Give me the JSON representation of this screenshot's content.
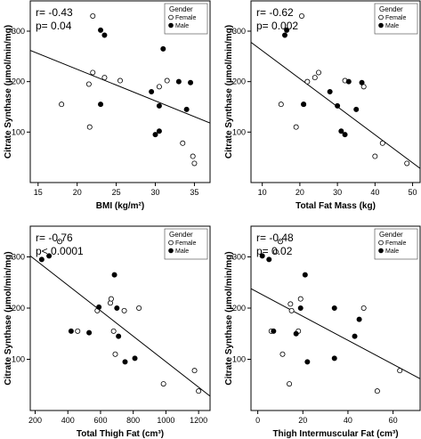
{
  "chart_data": [
    {
      "type": "scatter",
      "xlabel": "BMI (kg/m²)",
      "ylabel": "Citrate Synthase (µmol/min/mg)",
      "xlim": [
        14,
        37
      ],
      "ylim": [
        0,
        360
      ],
      "xticks": [
        "15",
        "20",
        "25",
        "30",
        "35"
      ],
      "yticks": [
        "100",
        "200",
        "300"
      ],
      "annotations": [
        "r= -0.43",
        "p= 0.04"
      ],
      "legend": {
        "title": "Gender",
        "entries": [
          "Female",
          "Male"
        ],
        "position": "top-right"
      },
      "trendline": [
        [
          14,
          262
        ],
        [
          37,
          118
        ]
      ],
      "series": [
        {
          "name": "Female",
          "marker": "open-circle",
          "points": [
            [
              18,
              155
            ],
            [
              21.5,
              195
            ],
            [
              21.6,
              110
            ],
            [
              22,
              330
            ],
            [
              22,
              218
            ],
            [
              23.5,
              208
            ],
            [
              25.5,
              202
            ],
            [
              30.5,
              190
            ],
            [
              31.5,
              202
            ],
            [
              33.5,
              78
            ],
            [
              34.8,
              52
            ],
            [
              35,
              38
            ]
          ]
        },
        {
          "name": "Male",
          "marker": "filled-circle",
          "points": [
            [
              23,
              155
            ],
            [
              23,
              302
            ],
            [
              23.5,
              292
            ],
            [
              29.5,
              180
            ],
            [
              30,
              95
            ],
            [
              30.5,
              102
            ],
            [
              30.5,
              152
            ],
            [
              31,
              265
            ],
            [
              33,
              200
            ],
            [
              34,
              145
            ],
            [
              34.5,
              198
            ]
          ]
        }
      ]
    },
    {
      "type": "scatter",
      "xlabel": "Total Fat Mass (kg)",
      "ylabel": "Citrate Synthase (µmol/min/mg)",
      "xlim": [
        7,
        52
      ],
      "ylim": [
        0,
        360
      ],
      "xticks": [
        "10",
        "20",
        "30",
        "40",
        "50"
      ],
      "yticks": [
        "100",
        "200",
        "300"
      ],
      "annotations": [
        "r= -0.62",
        "p= 0.002"
      ],
      "legend": {
        "title": "Gender",
        "entries": [
          "Female",
          "Male"
        ],
        "position": "top-right"
      },
      "trendline": [
        [
          7,
          278
        ],
        [
          52,
          28
        ]
      ],
      "series": [
        {
          "name": "Female",
          "marker": "open-circle",
          "points": [
            [
              15,
              155
            ],
            [
              19,
              110
            ],
            [
              20.5,
              330
            ],
            [
              21,
              155
            ],
            [
              22,
              200
            ],
            [
              24,
              208
            ],
            [
              25,
              218
            ],
            [
              32,
              202
            ],
            [
              37,
              190
            ],
            [
              40,
              52
            ],
            [
              42,
              78
            ],
            [
              48.5,
              38
            ]
          ]
        },
        {
          "name": "Male",
          "marker": "filled-circle",
          "points": [
            [
              16,
              292
            ],
            [
              16.5,
              302
            ],
            [
              21,
              155
            ],
            [
              28,
              180
            ],
            [
              30,
              152
            ],
            [
              31,
              102
            ],
            [
              32,
              95
            ],
            [
              33,
              200
            ],
            [
              35,
              145
            ],
            [
              36.5,
              198
            ]
          ]
        }
      ]
    },
    {
      "type": "scatter",
      "xlabel": "Total Thigh Fat (cm³)",
      "ylabel": "Citrate Synthase (µmol/min/mg)",
      "xlim": [
        170,
        1270
      ],
      "ylim": [
        0,
        360
      ],
      "xticks": [
        "200",
        "400",
        "600",
        "800",
        "1000",
        "1200"
      ],
      "yticks": [
        "100",
        "200",
        "300"
      ],
      "annotations": [
        "r= -0.76",
        "p< 0.0001"
      ],
      "legend": {
        "title": "Gender",
        "entries": [
          "Female",
          "Male"
        ],
        "position": "top-right"
      },
      "trendline": [
        [
          170,
          302
        ],
        [
          1270,
          28
        ]
      ],
      "series": [
        {
          "name": "Female",
          "marker": "open-circle",
          "points": [
            [
              350,
              330
            ],
            [
              460,
              155
            ],
            [
              580,
              195
            ],
            [
              660,
              210
            ],
            [
              665,
              218
            ],
            [
              680,
              155
            ],
            [
              690,
              110
            ],
            [
              745,
              195
            ],
            [
              835,
              200
            ],
            [
              985,
              52
            ],
            [
              1175,
              78
            ],
            [
              1200,
              38
            ]
          ]
        },
        {
          "name": "Male",
          "marker": "filled-circle",
          "points": [
            [
              240,
              295
            ],
            [
              285,
              302
            ],
            [
              420,
              155
            ],
            [
              530,
              152
            ],
            [
              590,
              202
            ],
            [
              685,
              265
            ],
            [
              700,
              200
            ],
            [
              710,
              145
            ],
            [
              750,
              95
            ],
            [
              810,
              102
            ]
          ]
        }
      ]
    },
    {
      "type": "scatter",
      "xlabel": "Thigh Intermuscular Fat (cm³)",
      "ylabel": "Citrate Synthase (µmol/min/mg)",
      "xlim": [
        -3,
        72
      ],
      "ylim": [
        0,
        360
      ],
      "xticks": [
        "0",
        "20",
        "40",
        "60"
      ],
      "yticks": [
        "100",
        "200",
        "300"
      ],
      "annotations": [
        "r= -0.48",
        "p= 0.02"
      ],
      "legend": {
        "title": "Gender",
        "entries": [
          "Female",
          "Male"
        ],
        "position": "top-right"
      },
      "trendline": [
        [
          -3,
          238
        ],
        [
          72,
          62
        ]
      ],
      "series": [
        {
          "name": "Female",
          "marker": "open-circle",
          "points": [
            [
              6,
              155
            ],
            [
              8,
              310
            ],
            [
              10,
              330
            ],
            [
              11,
              110
            ],
            [
              14,
              52
            ],
            [
              14.5,
              208
            ],
            [
              15,
              195
            ],
            [
              18,
              155
            ],
            [
              19,
              218
            ],
            [
              47,
              200
            ],
            [
              53,
              38
            ],
            [
              63,
              78
            ]
          ]
        },
        {
          "name": "Male",
          "marker": "filled-circle",
          "points": [
            [
              2,
              302
            ],
            [
              5,
              295
            ],
            [
              7,
              155
            ],
            [
              17,
              150
            ],
            [
              19,
              200
            ],
            [
              21,
              265
            ],
            [
              22,
              95
            ],
            [
              34,
              102
            ],
            [
              34,
              200
            ],
            [
              43,
              145
            ],
            [
              45,
              178
            ]
          ]
        }
      ]
    }
  ]
}
